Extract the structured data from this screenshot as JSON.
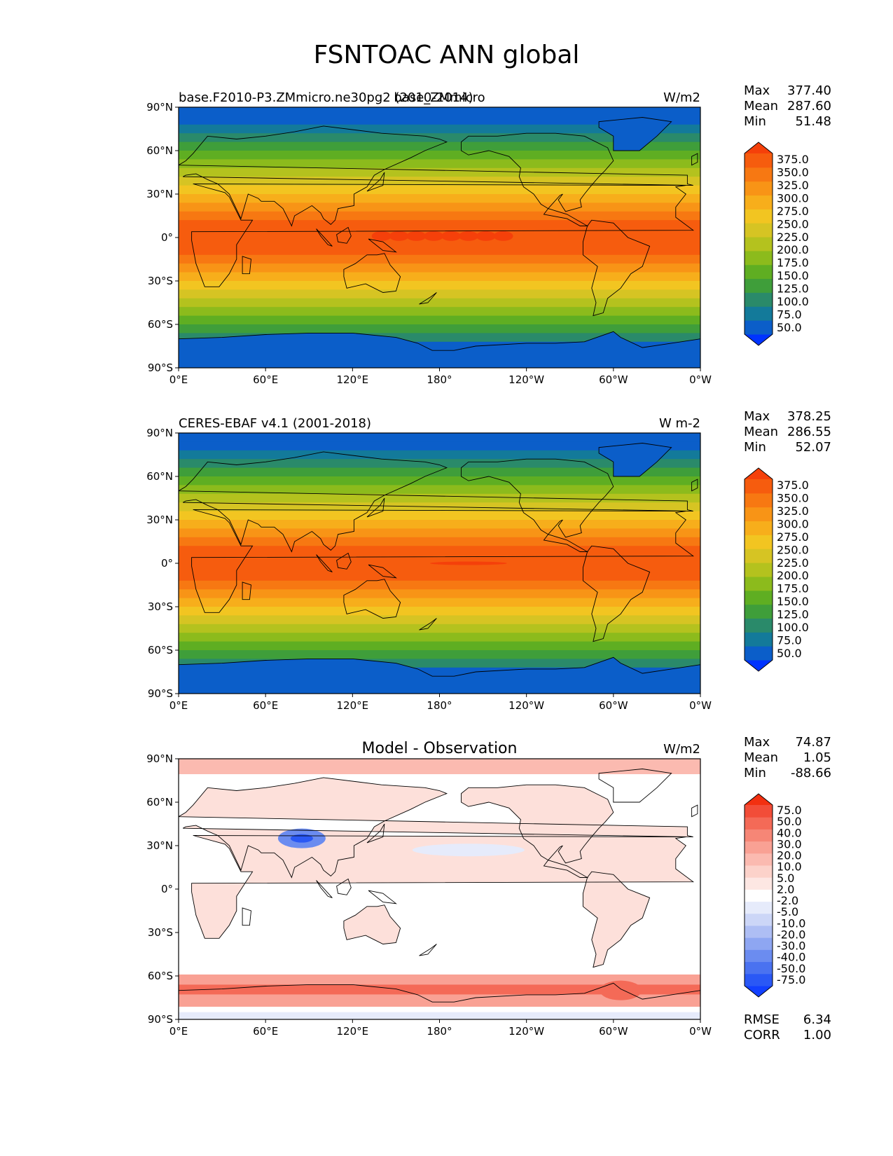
{
  "title": "FSNTOAC ANN global",
  "lat_ticks": [
    "90°N",
    "60°N",
    "30°N",
    "0°",
    "30°S",
    "60°S",
    "90°S"
  ],
  "lon_ticks": [
    "0°E",
    "60°E",
    "120°E",
    "180°",
    "120°W",
    "60°W",
    "0°W"
  ],
  "panels": [
    {
      "id": "test",
      "left_label": "base.F2010-P3.ZMmicro.ne30pg2 (2010-2014)",
      "center_label": "base_ZMmicro",
      "units": "W/m2",
      "stats": [
        {
          "name": "Max",
          "value": "377.40"
        },
        {
          "name": "Mean",
          "value": "287.60"
        },
        {
          "name": "Min",
          "value": "51.48"
        }
      ],
      "colorbar": {
        "levels": [
          "375.0",
          "350.0",
          "325.0",
          "300.0",
          "275.0",
          "250.0",
          "225.0",
          "200.0",
          "175.0",
          "150.0",
          "125.0",
          "100.0",
          "75.0",
          "50.0"
        ],
        "colors": [
          "#0033ff",
          "#0b5ec9",
          "#137a9a",
          "#2a8a6a",
          "#3f9e3a",
          "#5fae22",
          "#8cbb1c",
          "#b4c21e",
          "#d6c423",
          "#f2c521",
          "#f7ae1b",
          "#f89416",
          "#f77812",
          "#f65c0e",
          "#f5400a"
        ]
      }
    },
    {
      "id": "ref",
      "left_label": "CERES-EBAF v4.1 (2001-2018)",
      "center_label": "",
      "units": "W m-2",
      "stats": [
        {
          "name": "Max",
          "value": "378.25"
        },
        {
          "name": "Mean",
          "value": "286.55"
        },
        {
          "name": "Min",
          "value": "52.07"
        }
      ],
      "colorbar": {
        "levels": [
          "375.0",
          "350.0",
          "325.0",
          "300.0",
          "275.0",
          "250.0",
          "225.0",
          "200.0",
          "175.0",
          "150.0",
          "125.0",
          "100.0",
          "75.0",
          "50.0"
        ],
        "colors": [
          "#0033ff",
          "#0b5ec9",
          "#137a9a",
          "#2a8a6a",
          "#3f9e3a",
          "#5fae22",
          "#8cbb1c",
          "#b4c21e",
          "#d6c423",
          "#f2c521",
          "#f7ae1b",
          "#f89416",
          "#f77812",
          "#f65c0e",
          "#f5400a"
        ]
      }
    },
    {
      "id": "diff",
      "left_label": "",
      "center_label": "Model - Observation",
      "units": "W/m2",
      "stats": [
        {
          "name": "Max",
          "value": "74.87"
        },
        {
          "name": "Mean",
          "value": "1.05"
        },
        {
          "name": "Min",
          "value": "-88.66"
        }
      ],
      "extra_stats": [
        {
          "name": "RMSE",
          "value": "6.34"
        },
        {
          "name": "CORR",
          "value": "1.00"
        }
      ],
      "colorbar": {
        "levels": [
          "75.0",
          "50.0",
          "40.0",
          "30.0",
          "20.0",
          "10.0",
          "5.0",
          "2.0",
          "-2.0",
          "-5.0",
          "-10.0",
          "-20.0",
          "-30.0",
          "-40.0",
          "-50.0",
          "-75.0"
        ],
        "colors": [
          "#1240ff",
          "#2a58f5",
          "#4a72f0",
          "#6b8cf0",
          "#8ea6f2",
          "#aebef4",
          "#ccd6f7",
          "#e6ebfb",
          "#ffffff",
          "#fde7e3",
          "#fcd2ca",
          "#fbbab0",
          "#f9a194",
          "#f68676",
          "#f46a57",
          "#f24d38",
          "#f23010"
        ]
      }
    }
  ]
}
